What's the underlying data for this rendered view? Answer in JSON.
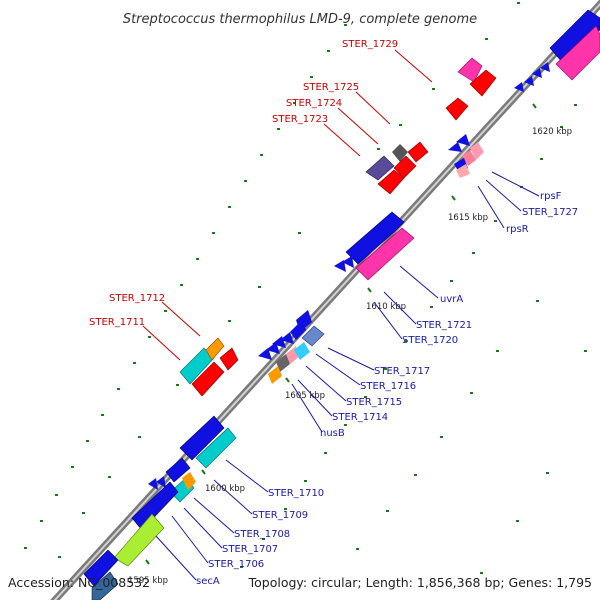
{
  "title": "Streptococcus thermophilus LMD-9, complete genome",
  "footer": {
    "accession": "Accession: NC_008532",
    "topology": "Topology: circular; Length: 1,856,368 bp; Genes: 1,795"
  },
  "kbp_labels": [
    "1620 kbp",
    "1615 kbp",
    "1610 kbp",
    "1605 kbp",
    "1600 kbp",
    "1595 kbp"
  ],
  "gene_labels_red": [
    "STER_1729",
    "STER_1725",
    "STER_1724",
    "STER_1723",
    "STER_1712",
    "STER_1711"
  ],
  "gene_labels_blue": [
    "rpsF",
    "STER_1727",
    "rpsR",
    "uvrA",
    "STER_1721",
    "STER_1720",
    "STER_1717",
    "STER_1716",
    "STER_1715",
    "STER_1714",
    "nusB",
    "STER_1710",
    "STER_1709",
    "STER_1708",
    "STER_1707",
    "STER_1706",
    "secA"
  ],
  "colors": {
    "backbone": "#8a8a8a",
    "cds_forward": "#ff0000",
    "cds_reverse": "#1010e0",
    "trna": "#ff33aa",
    "other": "#00cccc",
    "gc_skew": "#1a7a1a"
  }
}
